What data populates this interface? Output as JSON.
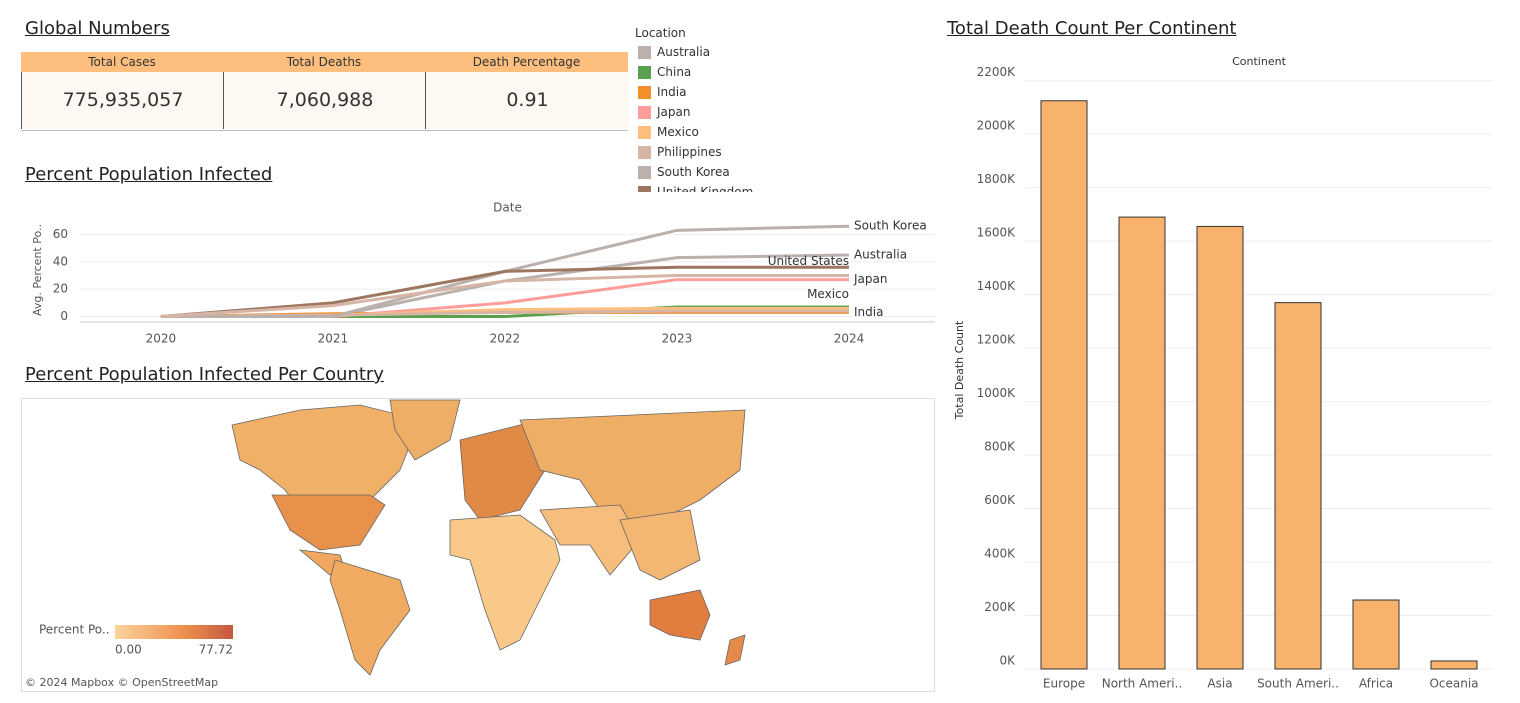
{
  "global_numbers": {
    "title": "Global Numbers",
    "headers": [
      "Total Cases",
      "Total Deaths",
      "Death Percentage"
    ],
    "values": [
      "775,935,057",
      "7,060,988",
      "0.91"
    ]
  },
  "map": {
    "title": "Percent Population Infected Per Country",
    "legend_title": "Percent Po..",
    "legend_min": "0.00",
    "legend_max": "77.72",
    "attribution": "© 2024 Mapbox  © OpenStreetMap"
  },
  "chart_data": [
    {
      "type": "line",
      "title": "Percent Population Infected",
      "x_title": "Date",
      "y_title": "Avg. Percent Po..",
      "legend_title": "Location",
      "x": [
        2020,
        2021,
        2022,
        2023,
        2024
      ],
      "xlim": [
        2019.53,
        2024.5
      ],
      "xticks": [
        2020,
        2021,
        2022,
        2023,
        2024
      ],
      "ylim": [
        -4,
        72
      ],
      "yticks": [
        0,
        20,
        40,
        60
      ],
      "grid": true,
      "series": [
        {
          "name": "Australia",
          "color": "#bab0ac",
          "values": [
            0,
            0,
            26,
            43,
            45
          ],
          "end_label": true
        },
        {
          "name": "China",
          "color": "#59a14f",
          "values": [
            0,
            0,
            0,
            7,
            7
          ],
          "end_label": false
        },
        {
          "name": "India",
          "color": "#f28e2b",
          "values": [
            0,
            2,
            3,
            3,
            3
          ],
          "end_label": true
        },
        {
          "name": "Japan",
          "color": "#ff9d9a",
          "values": [
            0,
            0,
            10,
            27,
            27
          ],
          "end_label": true
        },
        {
          "name": "Mexico",
          "color": "#ffbe7d",
          "values": [
            0,
            1,
            5,
            6,
            6
          ],
          "end_label": true
        },
        {
          "name": "Philippines",
          "color": "#d7b5a6",
          "values": [
            0,
            1,
            3,
            4,
            4
          ],
          "end_label": false
        },
        {
          "name": "South Korea",
          "color": "#bab0ac",
          "values": [
            0,
            0,
            33,
            63,
            66
          ],
          "end_label": true
        },
        {
          "name": "United Kingdom",
          "color": "#9d7660",
          "values": [
            0,
            10,
            33,
            36,
            36
          ],
          "end_label": false
        },
        {
          "name": "United States",
          "color": "#d7b5a6",
          "values": [
            0,
            8,
            26,
            30,
            30
          ],
          "end_label": true
        }
      ]
    },
    {
      "type": "bar",
      "title": "Total Death Count Per Continent",
      "x_title": "Continent",
      "y_title": "Total Death Count",
      "categories": [
        "Europe",
        "North Ameri..",
        "Asia",
        "South Ameri..",
        "Africa",
        "Oceania"
      ],
      "values": [
        2125000,
        1690000,
        1655000,
        1370000,
        258000,
        30000
      ],
      "color": "#f8b26c",
      "ylim": [
        0,
        2240000
      ],
      "grid": true,
      "yticks": [
        {
          "value": 0,
          "label": "0K"
        },
        {
          "value": 200000,
          "label": "200K"
        },
        {
          "value": 400000,
          "label": "400K"
        },
        {
          "value": 600000,
          "label": "600K"
        },
        {
          "value": 800000,
          "label": "800K"
        },
        {
          "value": 1000000,
          "label": "1000K"
        },
        {
          "value": 1200000,
          "label": "1200K"
        },
        {
          "value": 1400000,
          "label": "1400K"
        },
        {
          "value": 1600000,
          "label": "1600K"
        },
        {
          "value": 1800000,
          "label": "1800K"
        },
        {
          "value": 2000000,
          "label": "2000K"
        },
        {
          "value": 2200000,
          "label": "2200K"
        }
      ]
    }
  ]
}
